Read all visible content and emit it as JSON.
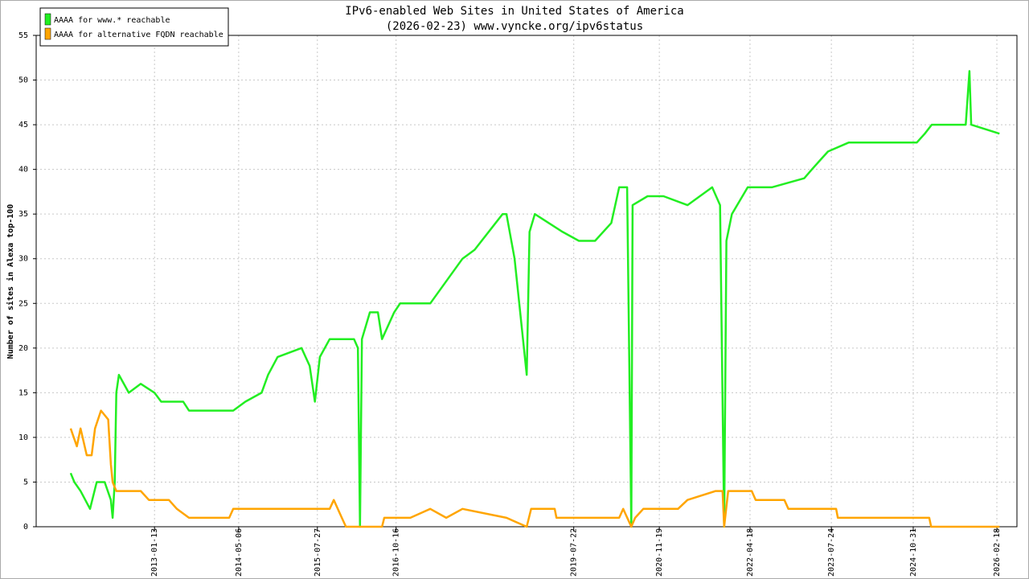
{
  "chart_data": {
    "type": "line",
    "title": "IPv6-enabled Web Sites in United States of America",
    "subtitle": "(2026-02-23) www.vyncke.org/ipv6status",
    "y_label": "Number of sites in Alexa top-100",
    "xlim": [
      "2011-03-13",
      "2026-06-12"
    ],
    "xticks": [
      "2013-01-13",
      "2014-05-06",
      "2015-07-27",
      "2016-10-16",
      "2019-07-22",
      "2020-11-19",
      "2022-04-18",
      "2023-07-24",
      "2024-10-31",
      "2026-02-18"
    ],
    "ylim": [
      0,
      55
    ],
    "yticks": [
      0,
      5,
      10,
      15,
      20,
      25,
      30,
      35,
      40,
      45,
      50,
      55
    ],
    "grid": true,
    "legend": "upper-left",
    "series": [
      {
        "name": "AAAA for www.* reachable",
        "color": "#22ee22",
        "x": [
          "2011-09-25",
          "2011-10-16",
          "2011-11-20",
          "2012-01-13",
          "2012-02-20",
          "2012-04-05",
          "2012-05-10",
          "2012-05-20",
          "2012-06-01",
          "2012-06-10",
          "2012-06-25",
          "2012-08-20",
          "2012-10-27",
          "2013-01-13",
          "2013-02-20",
          "2013-06-25",
          "2013-07-28",
          "2014-04-05",
          "2014-06-13",
          "2014-09-13",
          "2014-10-20",
          "2014-12-13",
          "2015-04-28",
          "2015-06-13",
          "2015-07-13",
          "2015-08-10",
          "2015-10-05",
          "2016-02-20",
          "2016-03-13",
          "2016-03-25",
          "2016-04-05",
          "2016-05-20",
          "2016-07-05",
          "2016-07-28",
          "2016-10-05",
          "2016-11-08",
          "2017-04-28",
          "2017-10-28",
          "2018-01-05",
          "2018-06-13",
          "2018-07-05",
          "2018-08-20",
          "2018-10-28",
          "2018-11-13",
          "2018-12-13",
          "2019-05-20",
          "2019-08-20",
          "2019-11-20",
          "2020-02-20",
          "2020-04-05",
          "2020-05-20",
          "2020-06-13",
          "2020-06-20",
          "2020-09-13",
          "2020-12-13",
          "2021-04-28",
          "2021-09-15",
          "2021-10-30",
          "2021-11-22",
          "2021-12-05",
          "2022-01-05",
          "2022-04-05",
          "2022-08-20",
          "2023-02-20",
          "2023-04-05",
          "2023-05-20",
          "2023-07-05",
          "2023-10-30",
          "2024-11-20",
          "2025-01-05",
          "2025-02-13",
          "2025-08-25",
          "2025-09-15",
          "2025-09-25",
          "2026-03-05"
        ],
        "values": [
          6,
          5,
          4,
          2,
          5,
          5,
          3,
          1,
          5,
          15,
          17,
          15,
          16,
          15,
          14,
          14,
          13,
          13,
          14,
          15,
          17,
          19,
          20,
          18,
          14,
          19,
          21,
          21,
          20,
          0,
          21,
          24,
          24,
          21,
          24,
          25,
          25,
          30,
          31,
          35,
          35,
          30,
          17,
          33,
          35,
          33,
          32,
          32,
          34,
          38,
          38,
          0,
          36,
          37,
          37,
          36,
          38,
          36,
          0,
          32,
          35,
          38,
          38,
          39,
          40,
          41,
          42,
          43,
          43,
          44,
          45,
          45,
          51,
          45,
          44
        ]
      },
      {
        "name": "AAAA for alternative FQDN reachable",
        "color": "#ffa500",
        "x": [
          "2011-09-25",
          "2011-10-30",
          "2011-11-20",
          "2011-12-25",
          "2012-01-22",
          "2012-02-10",
          "2012-03-15",
          "2012-04-25",
          "2012-05-10",
          "2012-05-20",
          "2012-06-10",
          "2012-10-27",
          "2012-12-12",
          "2013-04-05",
          "2013-05-20",
          "2013-07-28",
          "2014-03-13",
          "2014-04-05",
          "2015-10-05",
          "2015-10-28",
          "2015-12-13",
          "2016-01-05",
          "2016-07-28",
          "2016-08-10",
          "2017-01-05",
          "2017-04-28",
          "2017-07-28",
          "2017-10-28",
          "2018-07-05",
          "2018-10-28",
          "2018-11-22",
          "2019-04-05",
          "2019-04-15",
          "2020-04-05",
          "2020-04-28",
          "2020-06-13",
          "2020-07-05",
          "2020-08-20",
          "2021-03-05",
          "2021-04-28",
          "2021-10-05",
          "2021-11-13",
          "2021-11-22",
          "2021-12-15",
          "2022-04-28",
          "2022-05-20",
          "2022-10-30",
          "2022-11-22",
          "2023-08-20",
          "2023-08-30",
          "2025-01-30",
          "2025-02-10",
          "2026-03-05"
        ],
        "values": [
          11,
          9,
          11,
          8,
          8,
          11,
          13,
          12,
          7,
          5,
          4,
          4,
          3,
          3,
          2,
          1,
          1,
          2,
          2,
          3,
          1,
          0,
          0,
          1,
          1,
          2,
          1,
          2,
          1,
          0,
          2,
          2,
          1,
          1,
          2,
          0,
          1,
          2,
          2,
          3,
          4,
          4,
          0,
          4,
          4,
          3,
          3,
          2,
          2,
          1,
          1,
          0,
          0
        ]
      }
    ]
  }
}
